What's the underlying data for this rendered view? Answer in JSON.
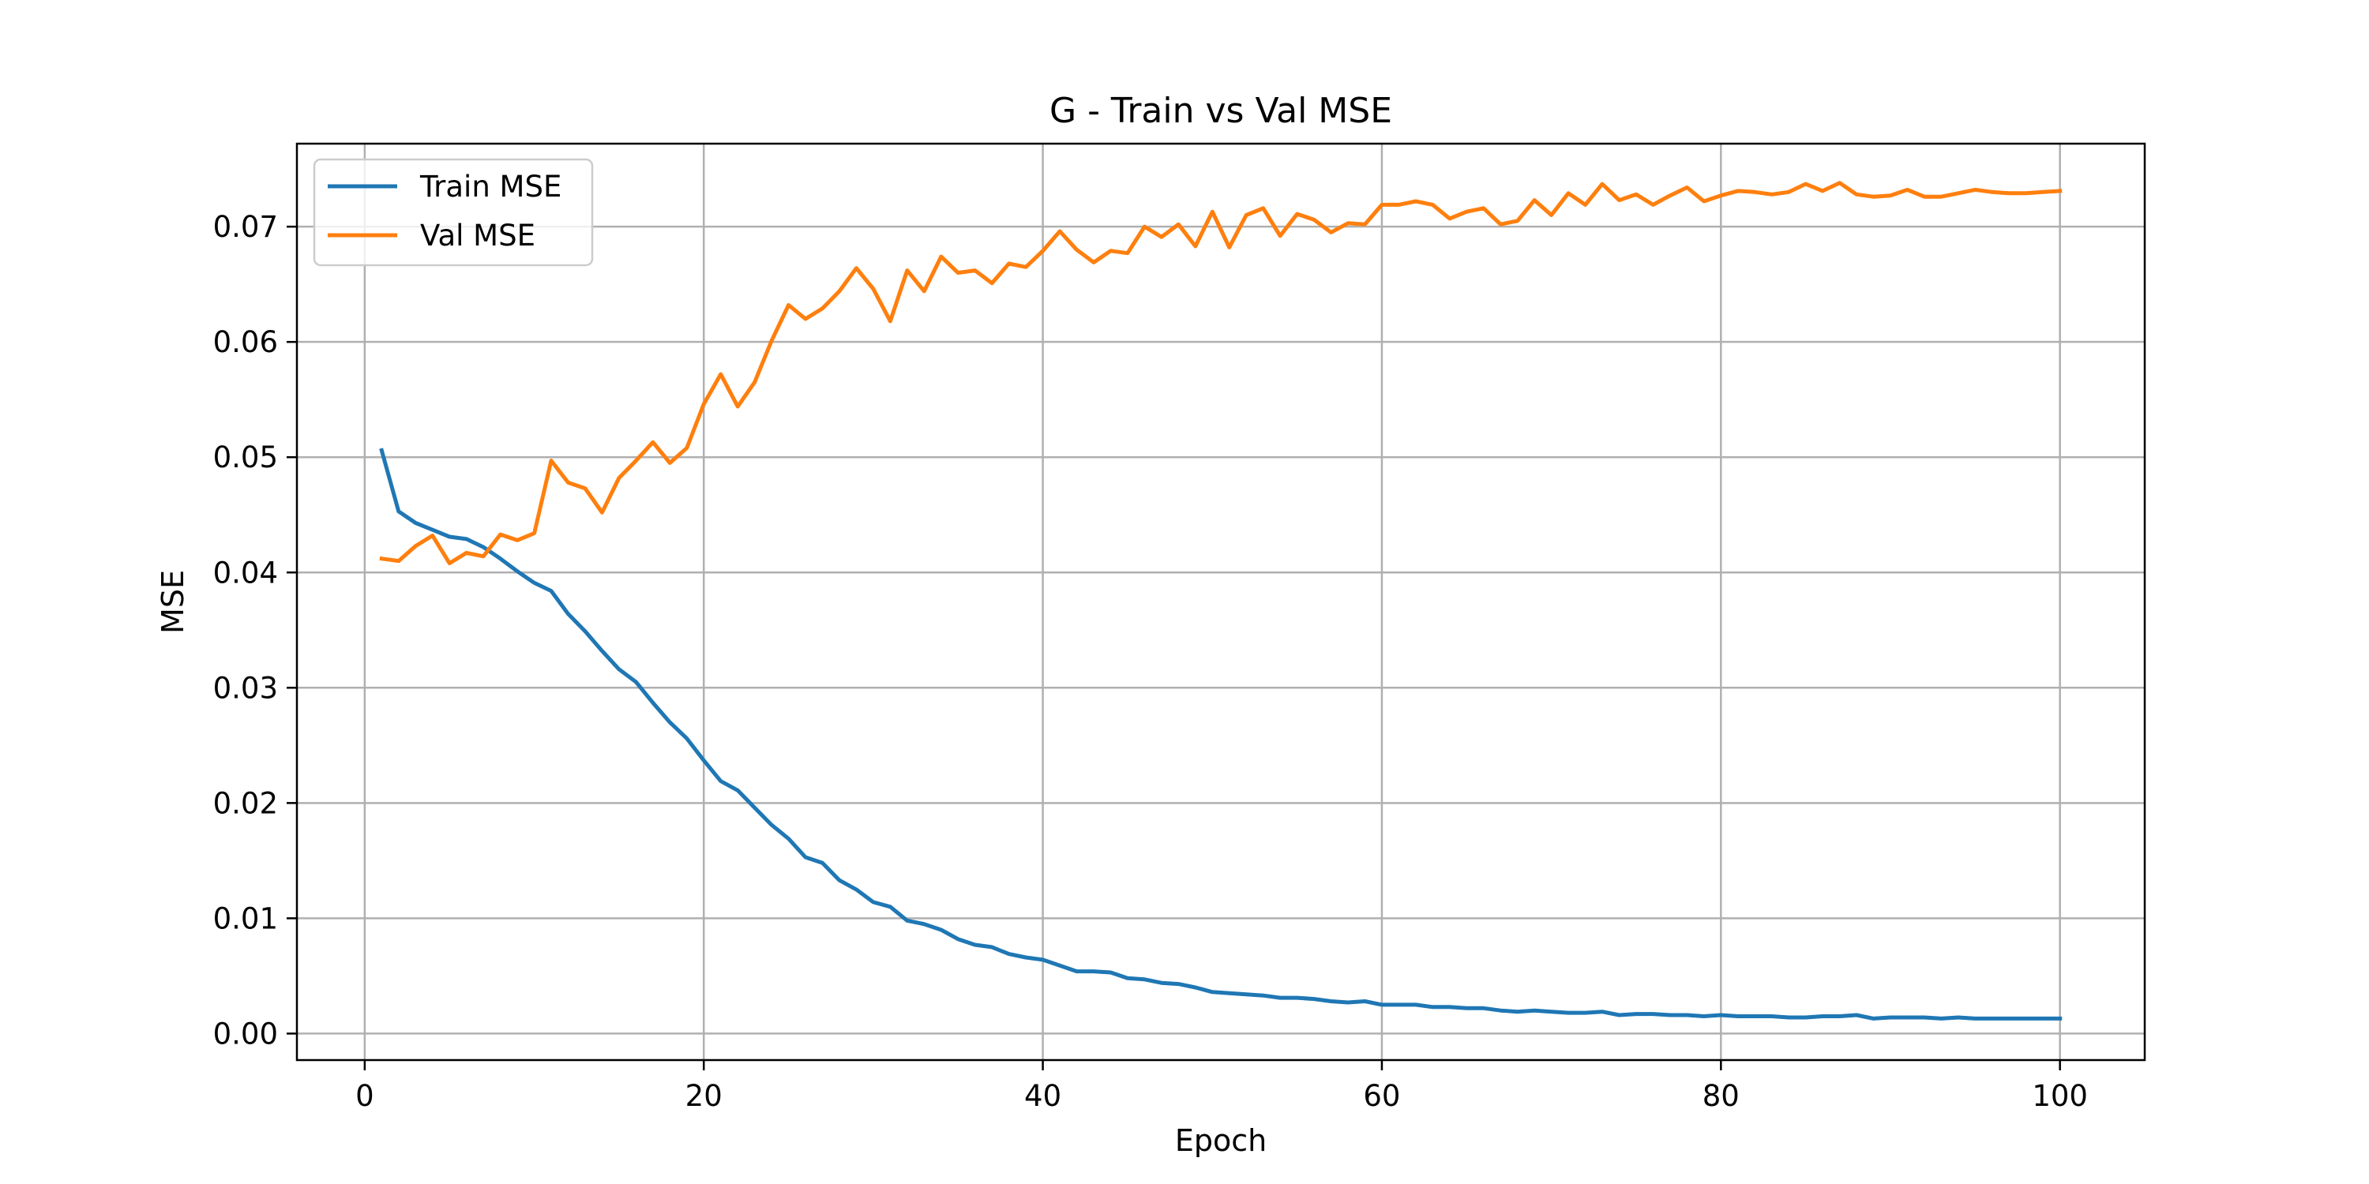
{
  "chart_data": {
    "type": "line",
    "title": "G - Train vs Val MSE",
    "xlabel": "Epoch",
    "ylabel": "MSE",
    "xlim": [
      -4,
      105
    ],
    "ylim": [
      -0.0023,
      0.0772
    ],
    "xticks": [
      0,
      20,
      40,
      60,
      80,
      100
    ],
    "xtick_labels": [
      "0",
      "20",
      "40",
      "60",
      "80",
      "100"
    ],
    "yticks": [
      0.0,
      0.01,
      0.02,
      0.03,
      0.04,
      0.05,
      0.06,
      0.07
    ],
    "ytick_labels": [
      "0.00",
      "0.01",
      "0.02",
      "0.03",
      "0.04",
      "0.05",
      "0.06",
      "0.07"
    ],
    "grid": true,
    "legend_position": "upper left",
    "x": [
      1,
      2,
      3,
      4,
      5,
      6,
      7,
      8,
      9,
      10,
      11,
      12,
      13,
      14,
      15,
      16,
      17,
      18,
      19,
      20,
      21,
      22,
      23,
      24,
      25,
      26,
      27,
      28,
      29,
      30,
      31,
      32,
      33,
      34,
      35,
      36,
      37,
      38,
      39,
      40,
      41,
      42,
      43,
      44,
      45,
      46,
      47,
      48,
      49,
      50,
      51,
      52,
      53,
      54,
      55,
      56,
      57,
      58,
      59,
      60,
      61,
      62,
      63,
      64,
      65,
      66,
      67,
      68,
      69,
      70,
      71,
      72,
      73,
      74,
      75,
      76,
      77,
      78,
      79,
      80,
      81,
      82,
      83,
      84,
      85,
      86,
      87,
      88,
      89,
      90,
      91,
      92,
      93,
      94,
      95,
      96,
      97,
      98,
      99,
      100
    ],
    "series": [
      {
        "name": "Train MSE",
        "color": "#1f77b4",
        "values": [
          0.0506,
          0.0453,
          0.0443,
          0.0437,
          0.0431,
          0.0429,
          0.0422,
          0.0412,
          0.0401,
          0.0391,
          0.0384,
          0.0364,
          0.0349,
          0.0332,
          0.0316,
          0.0305,
          0.0287,
          0.027,
          0.0256,
          0.0237,
          0.0219,
          0.0211,
          0.0196,
          0.0181,
          0.0169,
          0.0153,
          0.0148,
          0.0133,
          0.0125,
          0.0114,
          0.011,
          0.0098,
          0.0095,
          0.009,
          0.0082,
          0.0077,
          0.0075,
          0.0069,
          0.0066,
          0.0064,
          0.0059,
          0.0054,
          0.0054,
          0.0053,
          0.0048,
          0.0047,
          0.0044,
          0.0043,
          0.004,
          0.0036,
          0.0035,
          0.0034,
          0.0033,
          0.0031,
          0.0031,
          0.003,
          0.0028,
          0.0027,
          0.0028,
          0.0025,
          0.0025,
          0.0025,
          0.0023,
          0.0023,
          0.0022,
          0.0022,
          0.002,
          0.0019,
          0.002,
          0.0019,
          0.0018,
          0.0018,
          0.0019,
          0.0016,
          0.0017,
          0.0017,
          0.0016,
          0.0016,
          0.0015,
          0.0016,
          0.0015,
          0.0015,
          0.0015,
          0.0014,
          0.0014,
          0.0015,
          0.0015,
          0.0016,
          0.0013,
          0.0014,
          0.0014,
          0.0014,
          0.0013,
          0.0014,
          0.0013,
          0.0013,
          0.0013,
          0.0013,
          0.0013,
          0.0013
        ]
      },
      {
        "name": "Val MSE",
        "color": "#ff7f0e",
        "values": [
          0.0412,
          0.041,
          0.0423,
          0.0432,
          0.0408,
          0.0417,
          0.0414,
          0.0433,
          0.0428,
          0.0434,
          0.0497,
          0.0478,
          0.0473,
          0.0452,
          0.0482,
          0.0497,
          0.0513,
          0.0495,
          0.0508,
          0.0546,
          0.0572,
          0.0544,
          0.0565,
          0.0601,
          0.0632,
          0.062,
          0.0629,
          0.0644,
          0.0664,
          0.0646,
          0.0618,
          0.0662,
          0.0644,
          0.0674,
          0.066,
          0.0662,
          0.0651,
          0.0668,
          0.0665,
          0.0679,
          0.0696,
          0.068,
          0.0669,
          0.0679,
          0.0677,
          0.07,
          0.0691,
          0.0702,
          0.0683,
          0.0713,
          0.0682,
          0.071,
          0.0716,
          0.0692,
          0.0711,
          0.0706,
          0.0695,
          0.0703,
          0.0702,
          0.0719,
          0.0719,
          0.0722,
          0.0719,
          0.0707,
          0.0713,
          0.0716,
          0.0702,
          0.0705,
          0.0723,
          0.071,
          0.0729,
          0.0719,
          0.0737,
          0.0723,
          0.0728,
          0.0719,
          0.0727,
          0.0734,
          0.0722,
          0.0727,
          0.0731,
          0.073,
          0.0728,
          0.073,
          0.0737,
          0.0731,
          0.0738,
          0.0728,
          0.0726,
          0.0727,
          0.0732,
          0.0726,
          0.0726,
          0.0729,
          0.0732,
          0.073,
          0.0729,
          0.0729,
          0.073,
          0.0731
        ]
      }
    ]
  }
}
